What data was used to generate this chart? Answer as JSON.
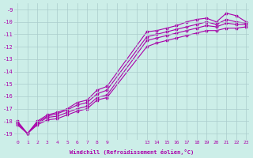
{
  "xlabel": "Windchill (Refroidissement éolien,°C)",
  "ylabel": "",
  "bg_color": "#cceee8",
  "grid_color": "#aacccc",
  "line_color": "#aa00aa",
  "marker": "*",
  "xtick_labels": [
    "0",
    "1",
    "2",
    "3",
    "4",
    "5",
    "6",
    "7",
    "8",
    "9",
    "",
    "",
    "",
    "13",
    "14",
    "15",
    "16",
    "17",
    "18",
    "19",
    "20",
    "21",
    "22",
    "23"
  ],
  "xtick_positions": [
    0,
    1,
    2,
    3,
    4,
    5,
    6,
    7,
    8,
    9,
    10,
    11,
    12,
    13,
    14,
    15,
    16,
    17,
    18,
    19,
    20,
    21,
    22,
    23
  ],
  "yticks": [
    -9,
    -10,
    -11,
    -12,
    -13,
    -14,
    -15,
    -16,
    -17,
    -18,
    -19
  ],
  "xlim": [
    -0.3,
    23.3
  ],
  "ylim": [
    -19.5,
    -8.5
  ],
  "lines": [
    {
      "x": [
        0,
        1,
        2,
        3,
        4,
        5,
        6,
        7,
        8,
        9,
        13,
        14,
        15,
        16,
        17,
        18,
        19,
        20,
        21,
        22,
        23
      ],
      "y": [
        -18.0,
        -19.0,
        -18.0,
        -17.5,
        -17.3,
        -17.0,
        -16.5,
        -16.3,
        -15.5,
        -15.2,
        -10.8,
        -10.7,
        -10.5,
        -10.3,
        -10.0,
        -9.8,
        -9.7,
        -10.0,
        -9.3,
        -9.5,
        -10.0
      ]
    },
    {
      "x": [
        0,
        1,
        2,
        3,
        4,
        5,
        6,
        7,
        8,
        9,
        13,
        14,
        15,
        16,
        17,
        18,
        19,
        20,
        21,
        22,
        23
      ],
      "y": [
        -18.1,
        -19.0,
        -18.1,
        -17.6,
        -17.4,
        -17.1,
        -16.7,
        -16.5,
        -15.8,
        -15.5,
        -11.2,
        -11.0,
        -10.8,
        -10.6,
        -10.4,
        -10.2,
        -10.0,
        -10.2,
        -9.8,
        -10.0,
        -10.1
      ]
    },
    {
      "x": [
        0,
        1,
        2,
        3,
        4,
        5,
        6,
        7,
        8,
        9,
        13,
        14,
        15,
        16,
        17,
        18,
        19,
        20,
        21,
        22,
        23
      ],
      "y": [
        -18.2,
        -19.0,
        -18.2,
        -17.7,
        -17.6,
        -17.3,
        -17.0,
        -16.8,
        -16.1,
        -15.9,
        -11.5,
        -11.3,
        -11.1,
        -10.9,
        -10.7,
        -10.5,
        -10.3,
        -10.4,
        -10.1,
        -10.2,
        -10.2
      ]
    },
    {
      "x": [
        0,
        1,
        2,
        3,
        4,
        5,
        6,
        7,
        8,
        9,
        13,
        14,
        15,
        16,
        17,
        18,
        19,
        20,
        21,
        22,
        23
      ],
      "y": [
        -18.3,
        -19.0,
        -18.3,
        -17.9,
        -17.8,
        -17.5,
        -17.2,
        -17.0,
        -16.3,
        -16.1,
        -12.0,
        -11.7,
        -11.5,
        -11.3,
        -11.1,
        -10.9,
        -10.7,
        -10.7,
        -10.5,
        -10.5,
        -10.4
      ]
    }
  ]
}
